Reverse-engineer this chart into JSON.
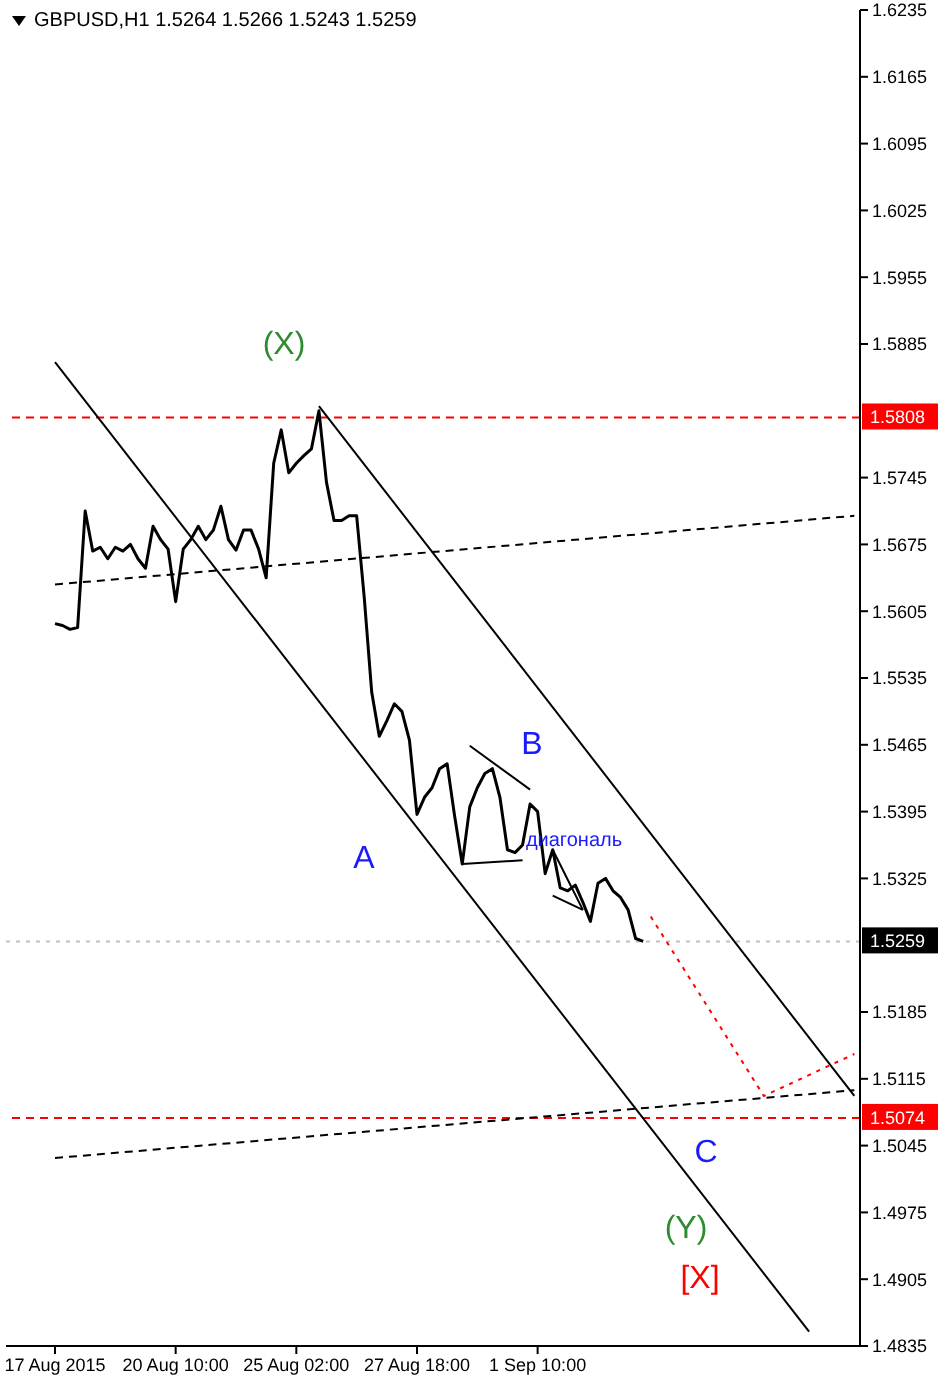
{
  "chart_data": {
    "type": "line",
    "title": "GBPUSD,H1  1.5264 1.5266 1.5243 1.5259",
    "categories": [
      "17 Aug 2015",
      null,
      null,
      null,
      null,
      null,
      null,
      null,
      null,
      null,
      null,
      null,
      null,
      null,
      null,
      null,
      "20 Aug 10:00",
      null,
      null,
      null,
      null,
      null,
      null,
      null,
      null,
      null,
      null,
      null,
      null,
      null,
      null,
      null,
      "25 Aug 02:00",
      null,
      null,
      null,
      null,
      null,
      null,
      null,
      null,
      null,
      null,
      null,
      null,
      null,
      null,
      null,
      "27 Aug 18:00",
      null,
      null,
      null,
      null,
      null,
      null,
      null,
      null,
      null,
      null,
      null,
      null,
      null,
      null,
      null,
      "1 Sep 10:00",
      null,
      null,
      null,
      null,
      null,
      null,
      null,
      null,
      null,
      null,
      null,
      null,
      null,
      null,
      null,
      null,
      null,
      null,
      null,
      null,
      null,
      null,
      null,
      null,
      null,
      null,
      null,
      null,
      null,
      null,
      null,
      null,
      null,
      null,
      null,
      null,
      null,
      null,
      null,
      null,
      null,
      null
    ],
    "series": [
      {
        "color": "#000000",
        "line_style": "solid",
        "values": [
          1.5592,
          1.559,
          1.5586,
          1.5588,
          1.571,
          1.5668,
          1.5672,
          1.566,
          1.5672,
          1.5668,
          1.5675,
          1.566,
          1.565,
          1.5694,
          1.568,
          1.567,
          1.5615,
          1.567,
          1.568,
          1.5694,
          1.568,
          1.569,
          1.5715,
          1.568,
          1.5669,
          1.569,
          1.569,
          1.567,
          1.564,
          1.576,
          1.5795,
          1.575,
          1.576,
          1.5768,
          1.5775,
          1.5815,
          1.574,
          1.57,
          1.57,
          1.5705,
          1.5705,
          1.562,
          1.552,
          1.5474,
          1.549,
          1.5508,
          1.55,
          1.547,
          1.5392,
          1.541,
          1.542,
          1.544,
          1.5445,
          1.539,
          1.534,
          1.54,
          1.542,
          1.5435,
          1.544,
          1.541,
          1.5355,
          1.5352,
          1.536,
          1.5403,
          1.5395,
          1.533,
          1.5355,
          1.5315,
          1.5312,
          1.5318,
          1.53,
          1.528,
          1.532,
          1.5325,
          1.5312,
          1.5305,
          1.5292,
          1.5262,
          1.5259,
          null,
          null,
          null,
          null,
          null,
          null,
          null,
          null,
          null,
          null,
          null,
          null,
          null,
          null,
          null,
          null,
          null,
          null,
          null,
          null,
          null,
          null,
          null,
          null,
          null,
          null,
          null,
          null
        ]
      },
      {
        "color": "#000000",
        "line_style": "solid",
        "values": [
          1.5866,
          null,
          null,
          null,
          null,
          null,
          null,
          null,
          null,
          null,
          null,
          null,
          null,
          null,
          null,
          null,
          null,
          null,
          null,
          null,
          null,
          null,
          null,
          null,
          null,
          null,
          null,
          null,
          null,
          null,
          null,
          null,
          null,
          null,
          null,
          null,
          null,
          null,
          null,
          null,
          null,
          null,
          null,
          null,
          null,
          null,
          null,
          null,
          null,
          null,
          null,
          null,
          null,
          null,
          null,
          null,
          null,
          null,
          null,
          null,
          null,
          null,
          null,
          null,
          null,
          null,
          null,
          null,
          null,
          null,
          null,
          null,
          null,
          null,
          null,
          null,
          null,
          null,
          null,
          null,
          null,
          null,
          null,
          null,
          null,
          null,
          null,
          null,
          null,
          null,
          null,
          null,
          null,
          null,
          null,
          null,
          null,
          null,
          null,
          null,
          1.485,
          null,
          null,
          null,
          null,
          null,
          null
        ]
      },
      {
        "color": "#000000",
        "line_style": "solid",
        "values": [
          null,
          null,
          null,
          null,
          null,
          null,
          null,
          null,
          null,
          null,
          null,
          null,
          null,
          null,
          null,
          null,
          null,
          null,
          null,
          null,
          null,
          null,
          null,
          null,
          null,
          null,
          null,
          null,
          null,
          null,
          null,
          null,
          null,
          null,
          null,
          1.582,
          null,
          null,
          null,
          null,
          null,
          null,
          null,
          null,
          null,
          null,
          null,
          null,
          null,
          null,
          null,
          null,
          null,
          null,
          null,
          null,
          null,
          null,
          null,
          null,
          null,
          null,
          null,
          null,
          null,
          null,
          null,
          null,
          null,
          null,
          null,
          null,
          null,
          null,
          null,
          null,
          null,
          null,
          null,
          null,
          null,
          null,
          null,
          null,
          null,
          null,
          null,
          null,
          null,
          null,
          null,
          null,
          null,
          null,
          null,
          null,
          null,
          null,
          null,
          null,
          null,
          null,
          null,
          null,
          null,
          null,
          1.5097
        ]
      },
      {
        "color": "#000000",
        "line_style": "dashed",
        "values": [
          1.5633,
          null,
          null,
          null,
          null,
          null,
          null,
          null,
          null,
          null,
          null,
          null,
          null,
          null,
          null,
          null,
          null,
          null,
          null,
          null,
          null,
          null,
          null,
          null,
          null,
          null,
          null,
          null,
          null,
          null,
          null,
          null,
          null,
          null,
          null,
          null,
          null,
          null,
          null,
          null,
          null,
          null,
          null,
          null,
          null,
          null,
          null,
          null,
          null,
          null,
          null,
          null,
          null,
          null,
          null,
          null,
          null,
          null,
          null,
          null,
          null,
          null,
          null,
          null,
          null,
          null,
          null,
          null,
          null,
          null,
          null,
          null,
          null,
          null,
          null,
          null,
          null,
          null,
          null,
          null,
          null,
          null,
          null,
          null,
          null,
          null,
          null,
          null,
          null,
          null,
          null,
          null,
          null,
          null,
          null,
          null,
          null,
          null,
          null,
          null,
          null,
          null,
          null,
          null,
          null,
          null,
          1.5705
        ]
      },
      {
        "color": "#000000",
        "line_style": "dashed",
        "values": [
          1.5032,
          null,
          null,
          null,
          null,
          null,
          null,
          null,
          null,
          null,
          null,
          null,
          null,
          null,
          null,
          null,
          null,
          null,
          null,
          null,
          null,
          null,
          null,
          null,
          null,
          null,
          null,
          null,
          null,
          null,
          null,
          null,
          null,
          null,
          null,
          null,
          null,
          null,
          null,
          null,
          null,
          null,
          null,
          null,
          null,
          null,
          null,
          null,
          null,
          null,
          null,
          null,
          null,
          null,
          null,
          null,
          null,
          null,
          null,
          null,
          null,
          null,
          null,
          null,
          null,
          null,
          null,
          null,
          null,
          null,
          null,
          null,
          null,
          null,
          null,
          null,
          null,
          null,
          null,
          null,
          null,
          null,
          null,
          null,
          null,
          null,
          null,
          null,
          null,
          null,
          null,
          null,
          null,
          null,
          null,
          null,
          null,
          null,
          null,
          null,
          null,
          null,
          null,
          null,
          null,
          null,
          1.5103
        ]
      },
      {
        "color": "#000000",
        "line_style": "solid",
        "values": [
          null,
          null,
          null,
          null,
          null,
          null,
          null,
          null,
          null,
          null,
          null,
          null,
          null,
          null,
          null,
          null,
          null,
          null,
          null,
          null,
          null,
          null,
          null,
          null,
          null,
          null,
          null,
          null,
          null,
          null,
          null,
          null,
          null,
          null,
          null,
          null,
          null,
          null,
          null,
          null,
          null,
          null,
          null,
          null,
          null,
          null,
          null,
          null,
          null,
          null,
          null,
          null,
          null,
          null,
          null,
          1.5464,
          null,
          null,
          null,
          null,
          null,
          null,
          null,
          1.5418,
          null,
          null,
          null,
          null,
          null,
          null,
          null,
          null,
          null,
          null,
          null,
          null,
          null,
          null,
          null,
          null,
          null,
          null,
          null,
          null,
          null,
          null,
          null,
          null,
          null,
          null,
          null,
          null,
          null,
          null,
          null,
          null,
          null,
          null,
          null,
          null,
          null,
          null,
          null,
          null,
          null,
          null,
          null
        ]
      },
      {
        "color": "#000000",
        "line_style": "solid",
        "values": [
          null,
          null,
          null,
          null,
          null,
          null,
          null,
          null,
          null,
          null,
          null,
          null,
          null,
          null,
          null,
          null,
          null,
          null,
          null,
          null,
          null,
          null,
          null,
          null,
          null,
          null,
          null,
          null,
          null,
          null,
          null,
          null,
          null,
          null,
          null,
          null,
          null,
          null,
          null,
          null,
          null,
          null,
          null,
          null,
          null,
          null,
          null,
          null,
          null,
          null,
          null,
          null,
          null,
          null,
          1.534,
          null,
          null,
          null,
          null,
          null,
          null,
          null,
          1.5344,
          null,
          null,
          null,
          null,
          null,
          null,
          null,
          null,
          null,
          null,
          null,
          null,
          null,
          null,
          null,
          null,
          null,
          null,
          null,
          null,
          null,
          null,
          null,
          null,
          null,
          null,
          null,
          null,
          null,
          null,
          null,
          null,
          null,
          null,
          null,
          null,
          null,
          null,
          null,
          null,
          null,
          null,
          null,
          null
        ]
      },
      {
        "color": "#000000",
        "line_style": "solid",
        "values": [
          null,
          null,
          null,
          null,
          null,
          null,
          null,
          null,
          null,
          null,
          null,
          null,
          null,
          null,
          null,
          null,
          null,
          null,
          null,
          null,
          null,
          null,
          null,
          null,
          null,
          null,
          null,
          null,
          null,
          null,
          null,
          null,
          null,
          null,
          null,
          null,
          null,
          null,
          null,
          null,
          null,
          null,
          null,
          null,
          null,
          null,
          null,
          null,
          null,
          null,
          null,
          null,
          null,
          null,
          null,
          null,
          null,
          null,
          null,
          null,
          null,
          null,
          null,
          null,
          null,
          null,
          1.5355,
          null,
          null,
          null,
          1.5292,
          null,
          null,
          null,
          null,
          null,
          null,
          null,
          null,
          null,
          null,
          null,
          null,
          null,
          null,
          null,
          null,
          null,
          null,
          null,
          null,
          null,
          null,
          null,
          null,
          null,
          null,
          null,
          null,
          null,
          null,
          null,
          null,
          null,
          null,
          null,
          null
        ]
      },
      {
        "color": "#000000",
        "line_style": "solid",
        "values": [
          null,
          null,
          null,
          null,
          null,
          null,
          null,
          null,
          null,
          null,
          null,
          null,
          null,
          null,
          null,
          null,
          null,
          null,
          null,
          null,
          null,
          null,
          null,
          null,
          null,
          null,
          null,
          null,
          null,
          null,
          null,
          null,
          null,
          null,
          null,
          null,
          null,
          null,
          null,
          null,
          null,
          null,
          null,
          null,
          null,
          null,
          null,
          null,
          null,
          null,
          null,
          null,
          null,
          null,
          null,
          null,
          null,
          null,
          null,
          null,
          null,
          null,
          null,
          null,
          null,
          null,
          1.5307,
          null,
          null,
          null,
          1.5292,
          null,
          null,
          null,
          null,
          null,
          null,
          null,
          null,
          null,
          null,
          null,
          null,
          null,
          null,
          null,
          null,
          null,
          null,
          null,
          null,
          null,
          null,
          null,
          null,
          null,
          null,
          null,
          null,
          null,
          null,
          null,
          null,
          null,
          null,
          null,
          null
        ]
      },
      {
        "color": "#ff0000",
        "line_style": "dotted",
        "values": [
          null,
          null,
          null,
          null,
          null,
          null,
          null,
          null,
          null,
          null,
          null,
          null,
          null,
          null,
          null,
          null,
          null,
          null,
          null,
          null,
          null,
          null,
          null,
          null,
          null,
          null,
          null,
          null,
          null,
          null,
          null,
          null,
          null,
          null,
          null,
          null,
          null,
          null,
          null,
          null,
          null,
          null,
          null,
          null,
          null,
          null,
          null,
          null,
          null,
          null,
          null,
          null,
          null,
          null,
          null,
          null,
          null,
          null,
          null,
          null,
          null,
          null,
          null,
          null,
          null,
          null,
          null,
          null,
          null,
          null,
          null,
          null,
          null,
          null,
          null,
          null,
          null,
          null,
          null,
          1.5285,
          null,
          null,
          null,
          null,
          null,
          null,
          null,
          null,
          null,
          null,
          null,
          null,
          null,
          null,
          1.5097,
          null,
          null,
          null,
          null,
          null,
          null,
          null,
          null,
          null,
          null,
          null,
          1.5141
        ]
      }
    ],
    "ylim": [
      1.4835,
      1.6235
    ],
    "yticks": [
      1.6235,
      1.6165,
      1.6095,
      1.6025,
      1.5955,
      1.5885,
      1.5745,
      1.5675,
      1.5605,
      1.5535,
      1.5465,
      1.5395,
      1.5325,
      1.5185,
      1.5115,
      1.5045,
      1.4975,
      1.4905,
      1.4835
    ],
    "ref_lines": [
      {
        "axis": "y",
        "value": 1.5808,
        "label": "1.5808",
        "color": "#ff0000",
        "line_style": "dashed"
      },
      {
        "axis": "y",
        "value": 1.5074,
        "label": "1.5074",
        "color": "#ff0000",
        "line_style": "dashed"
      },
      {
        "axis": "y",
        "value": 1.5259,
        "label": "1.5259",
        "color": "#c0c0c0",
        "line_style": "dotted"
      }
    ],
    "annotations": [
      "(X)",
      "A",
      "B",
      "диагональ",
      "C",
      "(Y)",
      "[X]"
    ],
    "marker": "none"
  }
}
